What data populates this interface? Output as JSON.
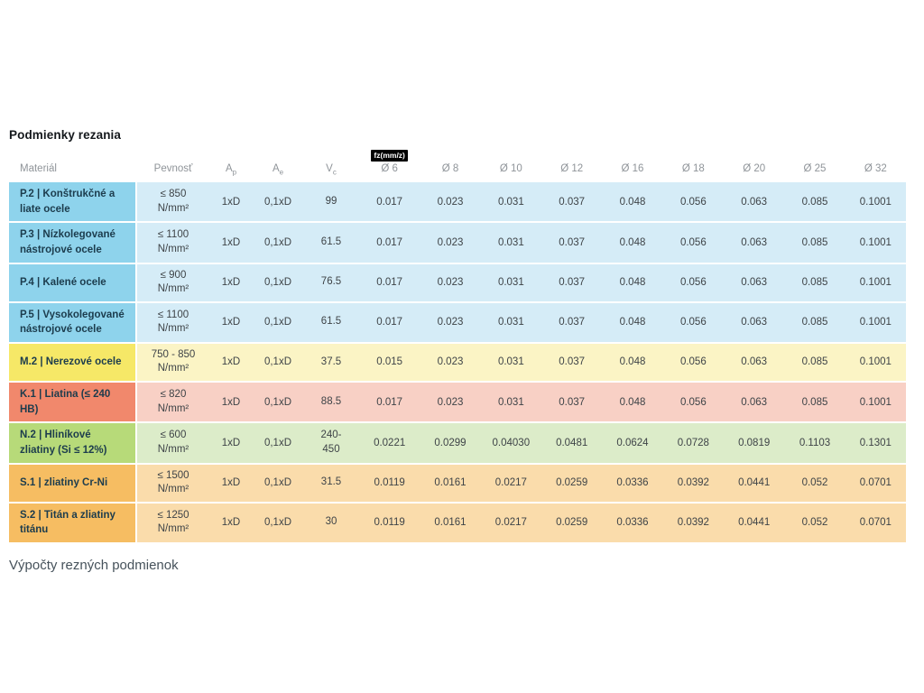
{
  "page": {
    "title": "Podmienky rezania",
    "footer_text": "Výpočty rezných podmienok"
  },
  "colors": {
    "group_p_cell": "#8ed3ec",
    "group_p_row": "#d5ecf7",
    "group_m_cell": "#f6e867",
    "group_m_row": "#fbf4c5",
    "group_k_cell": "#f1886c",
    "group_k_row": "#f8d0c5",
    "group_n_cell": "#b7da79",
    "group_n_row": "#dcecc9",
    "group_s_cell": "#f6bd62",
    "group_s_row": "#fadcab",
    "badge_bg": "#000000",
    "badge_text": "#ffffff",
    "header_text": "#8f9499",
    "material_text": "#1c3c4d",
    "value_text": "#3e4347"
  },
  "table": {
    "headers": {
      "material": "Materiál",
      "strength": "Pevnosť",
      "ap": {
        "base": "A",
        "sub": "p"
      },
      "ae": {
        "base": "A",
        "sub": "e"
      },
      "vc": {
        "base": "V",
        "sub": "c"
      }
    },
    "fz_badge": "fz(mm/z)",
    "diameter_headers": [
      "Ø 6",
      "Ø 8",
      "Ø 10",
      "Ø 12",
      "Ø 16",
      "Ø 18",
      "Ø 20",
      "Ø 25",
      "Ø 32"
    ],
    "rows": [
      {
        "material": "P.2 | Konštrukčné a liate ocele",
        "strength": "≤ 850\nN/mm²",
        "ap": "1xD",
        "ae": "0,1xD",
        "vc": "99",
        "fz": [
          "0.017",
          "0.023",
          "0.031",
          "0.037",
          "0.048",
          "0.056",
          "0.063",
          "0.085",
          "0.1001"
        ],
        "cell_bg": "#8ed3ec",
        "row_bg": "#d5ecf7"
      },
      {
        "material": "P.3 | Nízkolegované nástrojové ocele",
        "strength": "≤ 1100\nN/mm²",
        "ap": "1xD",
        "ae": "0,1xD",
        "vc": "61.5",
        "fz": [
          "0.017",
          "0.023",
          "0.031",
          "0.037",
          "0.048",
          "0.056",
          "0.063",
          "0.085",
          "0.1001"
        ],
        "cell_bg": "#8ed3ec",
        "row_bg": "#d5ecf7"
      },
      {
        "material": "P.4 | Kalené ocele",
        "strength": "≤ 900\nN/mm²",
        "ap": "1xD",
        "ae": "0,1xD",
        "vc": "76.5",
        "fz": [
          "0.017",
          "0.023",
          "0.031",
          "0.037",
          "0.048",
          "0.056",
          "0.063",
          "0.085",
          "0.1001"
        ],
        "cell_bg": "#8ed3ec",
        "row_bg": "#d5ecf7"
      },
      {
        "material": "P.5 | Vysokolegované nástrojové ocele",
        "strength": "≤ 1100\nN/mm²",
        "ap": "1xD",
        "ae": "0,1xD",
        "vc": "61.5",
        "fz": [
          "0.017",
          "0.023",
          "0.031",
          "0.037",
          "0.048",
          "0.056",
          "0.063",
          "0.085",
          "0.1001"
        ],
        "cell_bg": "#8ed3ec",
        "row_bg": "#d5ecf7"
      },
      {
        "material": "M.2 | Nerezové ocele",
        "strength": "750 - 850\nN/mm²",
        "ap": "1xD",
        "ae": "0,1xD",
        "vc": "37.5",
        "fz": [
          "0.015",
          "0.023",
          "0.031",
          "0.037",
          "0.048",
          "0.056",
          "0.063",
          "0.085",
          "0.1001"
        ],
        "cell_bg": "#f6e867",
        "row_bg": "#fbf4c5"
      },
      {
        "material": "K.1 | Liatina (≤ 240 HB)",
        "strength": "≤ 820\nN/mm²",
        "ap": "1xD",
        "ae": "0,1xD",
        "vc": "88.5",
        "fz": [
          "0.017",
          "0.023",
          "0.031",
          "0.037",
          "0.048",
          "0.056",
          "0.063",
          "0.085",
          "0.1001"
        ],
        "cell_bg": "#f1886c",
        "row_bg": "#f8d0c5"
      },
      {
        "material": "N.2 | Hliníkové zliatiny (Si ≤ 12%)",
        "strength": "≤ 600\nN/mm²",
        "ap": "1xD",
        "ae": "0,1xD",
        "vc": "240-\n450",
        "fz": [
          "0.0221",
          "0.0299",
          "0.04030",
          "0.0481",
          "0.0624",
          "0.0728",
          "0.0819",
          "0.1103",
          "0.1301"
        ],
        "cell_bg": "#b7da79",
        "row_bg": "#dcecc9"
      },
      {
        "material": "S.1 | zliatiny Cr-Ni",
        "strength": "≤ 1500\nN/mm²",
        "ap": "1xD",
        "ae": "0,1xD",
        "vc": "31.5",
        "fz": [
          "0.0119",
          "0.0161",
          "0.0217",
          "0.0259",
          "0.0336",
          "0.0392",
          "0.0441",
          "0.052",
          "0.0701"
        ],
        "cell_bg": "#f6bd62",
        "row_bg": "#fadcab"
      },
      {
        "material": "S.2 | Titán a zliatiny titánu",
        "strength": "≤ 1250\nN/mm²",
        "ap": "1xD",
        "ae": "0,1xD",
        "vc": "30",
        "fz": [
          "0.0119",
          "0.0161",
          "0.0217",
          "0.0259",
          "0.0336",
          "0.0392",
          "0.0441",
          "0.052",
          "0.0701"
        ],
        "cell_bg": "#f6bd62",
        "row_bg": "#fadcab"
      }
    ]
  },
  "chart_data": {
    "type": "table",
    "title": "Podmienky rezania",
    "fz_unit": "fz(mm/z)",
    "columns": [
      "Materiál",
      "Pevnosť",
      "Ap",
      "Ae",
      "Vc",
      "Ø 6",
      "Ø 8",
      "Ø 10",
      "Ø 12",
      "Ø 16",
      "Ø 18",
      "Ø 20",
      "Ø 25",
      "Ø 32"
    ],
    "rows": [
      [
        "P.2 | Konštrukčné a liate ocele",
        "≤ 850 N/mm²",
        "1xD",
        "0,1xD",
        "99",
        "0.017",
        "0.023",
        "0.031",
        "0.037",
        "0.048",
        "0.056",
        "0.063",
        "0.085",
        "0.1001"
      ],
      [
        "P.3 | Nízkolegované nástrojové ocele",
        "≤ 1100 N/mm²",
        "1xD",
        "0,1xD",
        "61.5",
        "0.017",
        "0.023",
        "0.031",
        "0.037",
        "0.048",
        "0.056",
        "0.063",
        "0.085",
        "0.1001"
      ],
      [
        "P.4 | Kalené ocele",
        "≤ 900 N/mm²",
        "1xD",
        "0,1xD",
        "76.5",
        "0.017",
        "0.023",
        "0.031",
        "0.037",
        "0.048",
        "0.056",
        "0.063",
        "0.085",
        "0.1001"
      ],
      [
        "P.5 | Vysokolegované nástrojové ocele",
        "≤ 1100 N/mm²",
        "1xD",
        "0,1xD",
        "61.5",
        "0.017",
        "0.023",
        "0.031",
        "0.037",
        "0.048",
        "0.056",
        "0.063",
        "0.085",
        "0.1001"
      ],
      [
        "M.2 | Nerezové ocele",
        "750 - 850 N/mm²",
        "1xD",
        "0,1xD",
        "37.5",
        "0.015",
        "0.023",
        "0.031",
        "0.037",
        "0.048",
        "0.056",
        "0.063",
        "0.085",
        "0.1001"
      ],
      [
        "K.1 | Liatina (≤ 240 HB)",
        "≤ 820 N/mm²",
        "1xD",
        "0,1xD",
        "88.5",
        "0.017",
        "0.023",
        "0.031",
        "0.037",
        "0.048",
        "0.056",
        "0.063",
        "0.085",
        "0.1001"
      ],
      [
        "N.2 | Hliníkové zliatiny (Si ≤ 12%)",
        "≤ 600 N/mm²",
        "1xD",
        "0,1xD",
        "240-450",
        "0.0221",
        "0.0299",
        "0.04030",
        "0.0481",
        "0.0624",
        "0.0728",
        "0.0819",
        "0.1103",
        "0.1301"
      ],
      [
        "S.1 | zliatiny Cr-Ni",
        "≤ 1500 N/mm²",
        "1xD",
        "0,1xD",
        "31.5",
        "0.0119",
        "0.0161",
        "0.0217",
        "0.0259",
        "0.0336",
        "0.0392",
        "0.0441",
        "0.052",
        "0.0701"
      ],
      [
        "S.2 | Titán a zliatiny titánu",
        "≤ 1250 N/mm²",
        "1xD",
        "0,1xD",
        "30",
        "0.0119",
        "0.0161",
        "0.0217",
        "0.0259",
        "0.0336",
        "0.0392",
        "0.0441",
        "0.052",
        "0.0701"
      ]
    ]
  }
}
